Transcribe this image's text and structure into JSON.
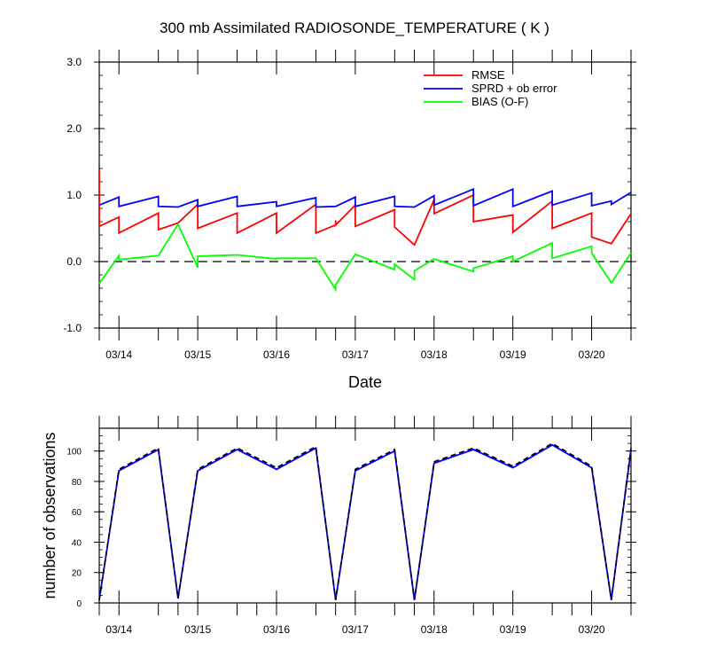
{
  "title": "300 mb Assimilated RADIOSONDE_TEMPERATURE ( K )",
  "chart_data": [
    {
      "type": "line",
      "xlabel": "Date",
      "ylabel": "",
      "ylim": [
        -1.0,
        3.0
      ],
      "yticks": [
        "3.0",
        "2.0",
        "1.0",
        "0.0",
        "-1.0"
      ],
      "yticks_values": [
        3.0,
        2.0,
        1.0,
        0.0,
        -1.0
      ],
      "xticks": [
        "03/14",
        "03/15",
        "03/16",
        "03/17",
        "03/18",
        "03/19",
        "03/20"
      ],
      "x_range": [
        0.0,
        27.0
      ],
      "x_units": "6-hour cycles starting 03/13 18Z",
      "reference_line": 0.0,
      "legend_position": "top-right",
      "series": [
        {
          "name": "RMSE",
          "color": "#ff0000",
          "points": [
            [
              0.0,
              1.38
            ],
            [
              0.0,
              0.53
            ],
            [
              1.0,
              0.67
            ],
            [
              1.0,
              0.43
            ],
            [
              3.0,
              0.73
            ],
            [
              3.0,
              0.48
            ],
            [
              4.0,
              0.58
            ],
            [
              5.0,
              0.86
            ],
            [
              5.0,
              0.5
            ],
            [
              7.0,
              0.73
            ],
            [
              7.0,
              0.43
            ],
            [
              9.0,
              0.73
            ],
            [
              9.0,
              0.43
            ],
            [
              11.0,
              0.86
            ],
            [
              11.0,
              0.43
            ],
            [
              12.0,
              0.55
            ],
            [
              12.0,
              0.55
            ],
            [
              12.0,
              0.62
            ],
            [
              12.0,
              0.55
            ],
            [
              13.0,
              0.85
            ],
            [
              13.0,
              0.53
            ],
            [
              15.0,
              0.78
            ],
            [
              15.0,
              0.52
            ],
            [
              16.0,
              0.25
            ],
            [
              17.0,
              0.93
            ],
            [
              17.0,
              0.72
            ],
            [
              19.0,
              1.0
            ],
            [
              19.0,
              0.6
            ],
            [
              21.0,
              0.7
            ],
            [
              21.0,
              0.44
            ],
            [
              23.0,
              0.91
            ],
            [
              23.0,
              0.5
            ],
            [
              25.0,
              0.73
            ],
            [
              25.0,
              0.37
            ],
            [
              26.0,
              0.27
            ],
            [
              27.0,
              0.72
            ]
          ]
        },
        {
          "name": "SPRD + ob error",
          "color": "#0000ff",
          "points": [
            [
              0.0,
              0.85
            ],
            [
              1.0,
              0.97
            ],
            [
              1.0,
              0.83
            ],
            [
              3.0,
              0.98
            ],
            [
              3.0,
              0.83
            ],
            [
              4.0,
              0.82
            ],
            [
              5.0,
              0.93
            ],
            [
              5.0,
              0.83
            ],
            [
              7.0,
              0.98
            ],
            [
              7.0,
              0.83
            ],
            [
              9.0,
              0.9
            ],
            [
              9.0,
              0.83
            ],
            [
              11.0,
              0.96
            ],
            [
              11.0,
              0.82
            ],
            [
              12.0,
              0.83
            ],
            [
              13.0,
              0.97
            ],
            [
              13.0,
              0.83
            ],
            [
              15.0,
              0.98
            ],
            [
              15.0,
              0.83
            ],
            [
              16.0,
              0.82
            ],
            [
              17.0,
              0.99
            ],
            [
              17.0,
              0.85
            ],
            [
              19.0,
              1.09
            ],
            [
              19.0,
              0.84
            ],
            [
              21.0,
              1.09
            ],
            [
              21.0,
              0.83
            ],
            [
              23.0,
              1.06
            ],
            [
              23.0,
              0.85
            ],
            [
              25.0,
              1.03
            ],
            [
              25.0,
              0.84
            ],
            [
              26.0,
              0.91
            ],
            [
              26.0,
              0.86
            ],
            [
              27.0,
              1.04
            ]
          ]
        },
        {
          "name": "BIAS (O-F)",
          "color": "#00ff00",
          "points": [
            [
              0.0,
              -0.33
            ],
            [
              1.0,
              0.09
            ],
            [
              1.0,
              0.03
            ],
            [
              3.0,
              0.09
            ],
            [
              4.0,
              0.56
            ],
            [
              5.0,
              -0.09
            ],
            [
              5.0,
              0.08
            ],
            [
              7.0,
              0.1
            ],
            [
              9.0,
              0.04
            ],
            [
              9.0,
              0.05
            ],
            [
              11.0,
              0.05
            ],
            [
              12.0,
              -0.42
            ],
            [
              12.0,
              -0.35
            ],
            [
              13.0,
              0.11
            ],
            [
              15.0,
              -0.12
            ],
            [
              15.0,
              -0.04
            ],
            [
              16.0,
              -0.27
            ],
            [
              16.0,
              -0.14
            ],
            [
              17.0,
              0.04
            ],
            [
              19.0,
              -0.15
            ],
            [
              19.0,
              -0.1
            ],
            [
              21.0,
              0.08
            ],
            [
              21.0,
              0.0
            ],
            [
              23.0,
              0.28
            ],
            [
              23.0,
              0.05
            ],
            [
              25.0,
              0.23
            ],
            [
              25.0,
              0.13
            ],
            [
              26.0,
              -0.32
            ],
            [
              27.0,
              0.13
            ]
          ]
        }
      ]
    },
    {
      "type": "line",
      "xlabel": "",
      "ylabel": "number of observations",
      "ylim": [
        0,
        115
      ],
      "yticks": [
        "100",
        "80",
        "60",
        "40",
        "20",
        "0"
      ],
      "yticks_values": [
        100,
        80,
        60,
        40,
        20,
        0
      ],
      "xticks": [
        "03/14",
        "03/15",
        "03/16",
        "03/17",
        "03/18",
        "03/19",
        "03/20"
      ],
      "x_range": [
        0.0,
        27.0
      ],
      "x_units": "6-hour cycles starting 03/13 18Z",
      "series": [
        {
          "color": "#0000ff",
          "style": "solid",
          "points": [
            [
              0.0,
              2
            ],
            [
              1.0,
              87
            ],
            [
              3.0,
              101
            ],
            [
              4.0,
              3
            ],
            [
              5.0,
              87
            ],
            [
              7.0,
              101
            ],
            [
              9.0,
              88
            ],
            [
              11.0,
              102
            ],
            [
              12.0,
              2
            ],
            [
              13.0,
              87
            ],
            [
              15.0,
              100
            ],
            [
              16.0,
              2
            ],
            [
              17.0,
              92
            ],
            [
              19.0,
              101
            ],
            [
              21.0,
              89
            ],
            [
              23.0,
              104
            ],
            [
              25.0,
              89
            ],
            [
              26.0,
              2
            ],
            [
              27.0,
              101
            ]
          ]
        },
        {
          "color": "#000000",
          "style": "dashed",
          "points": [
            [
              0.0,
              2
            ],
            [
              1.0,
              88
            ],
            [
              3.0,
              102
            ],
            [
              4.0,
              3
            ],
            [
              5.0,
              88
            ],
            [
              7.0,
              102
            ],
            [
              9.0,
              89
            ],
            [
              11.0,
              103
            ],
            [
              12.0,
              2
            ],
            [
              13.0,
              88
            ],
            [
              15.0,
              101
            ],
            [
              16.0,
              2
            ],
            [
              17.0,
              93
            ],
            [
              19.0,
              102
            ],
            [
              21.0,
              90
            ],
            [
              23.0,
              105
            ],
            [
              25.0,
              90
            ],
            [
              26.0,
              2
            ],
            [
              27.0,
              102
            ]
          ]
        }
      ]
    }
  ]
}
